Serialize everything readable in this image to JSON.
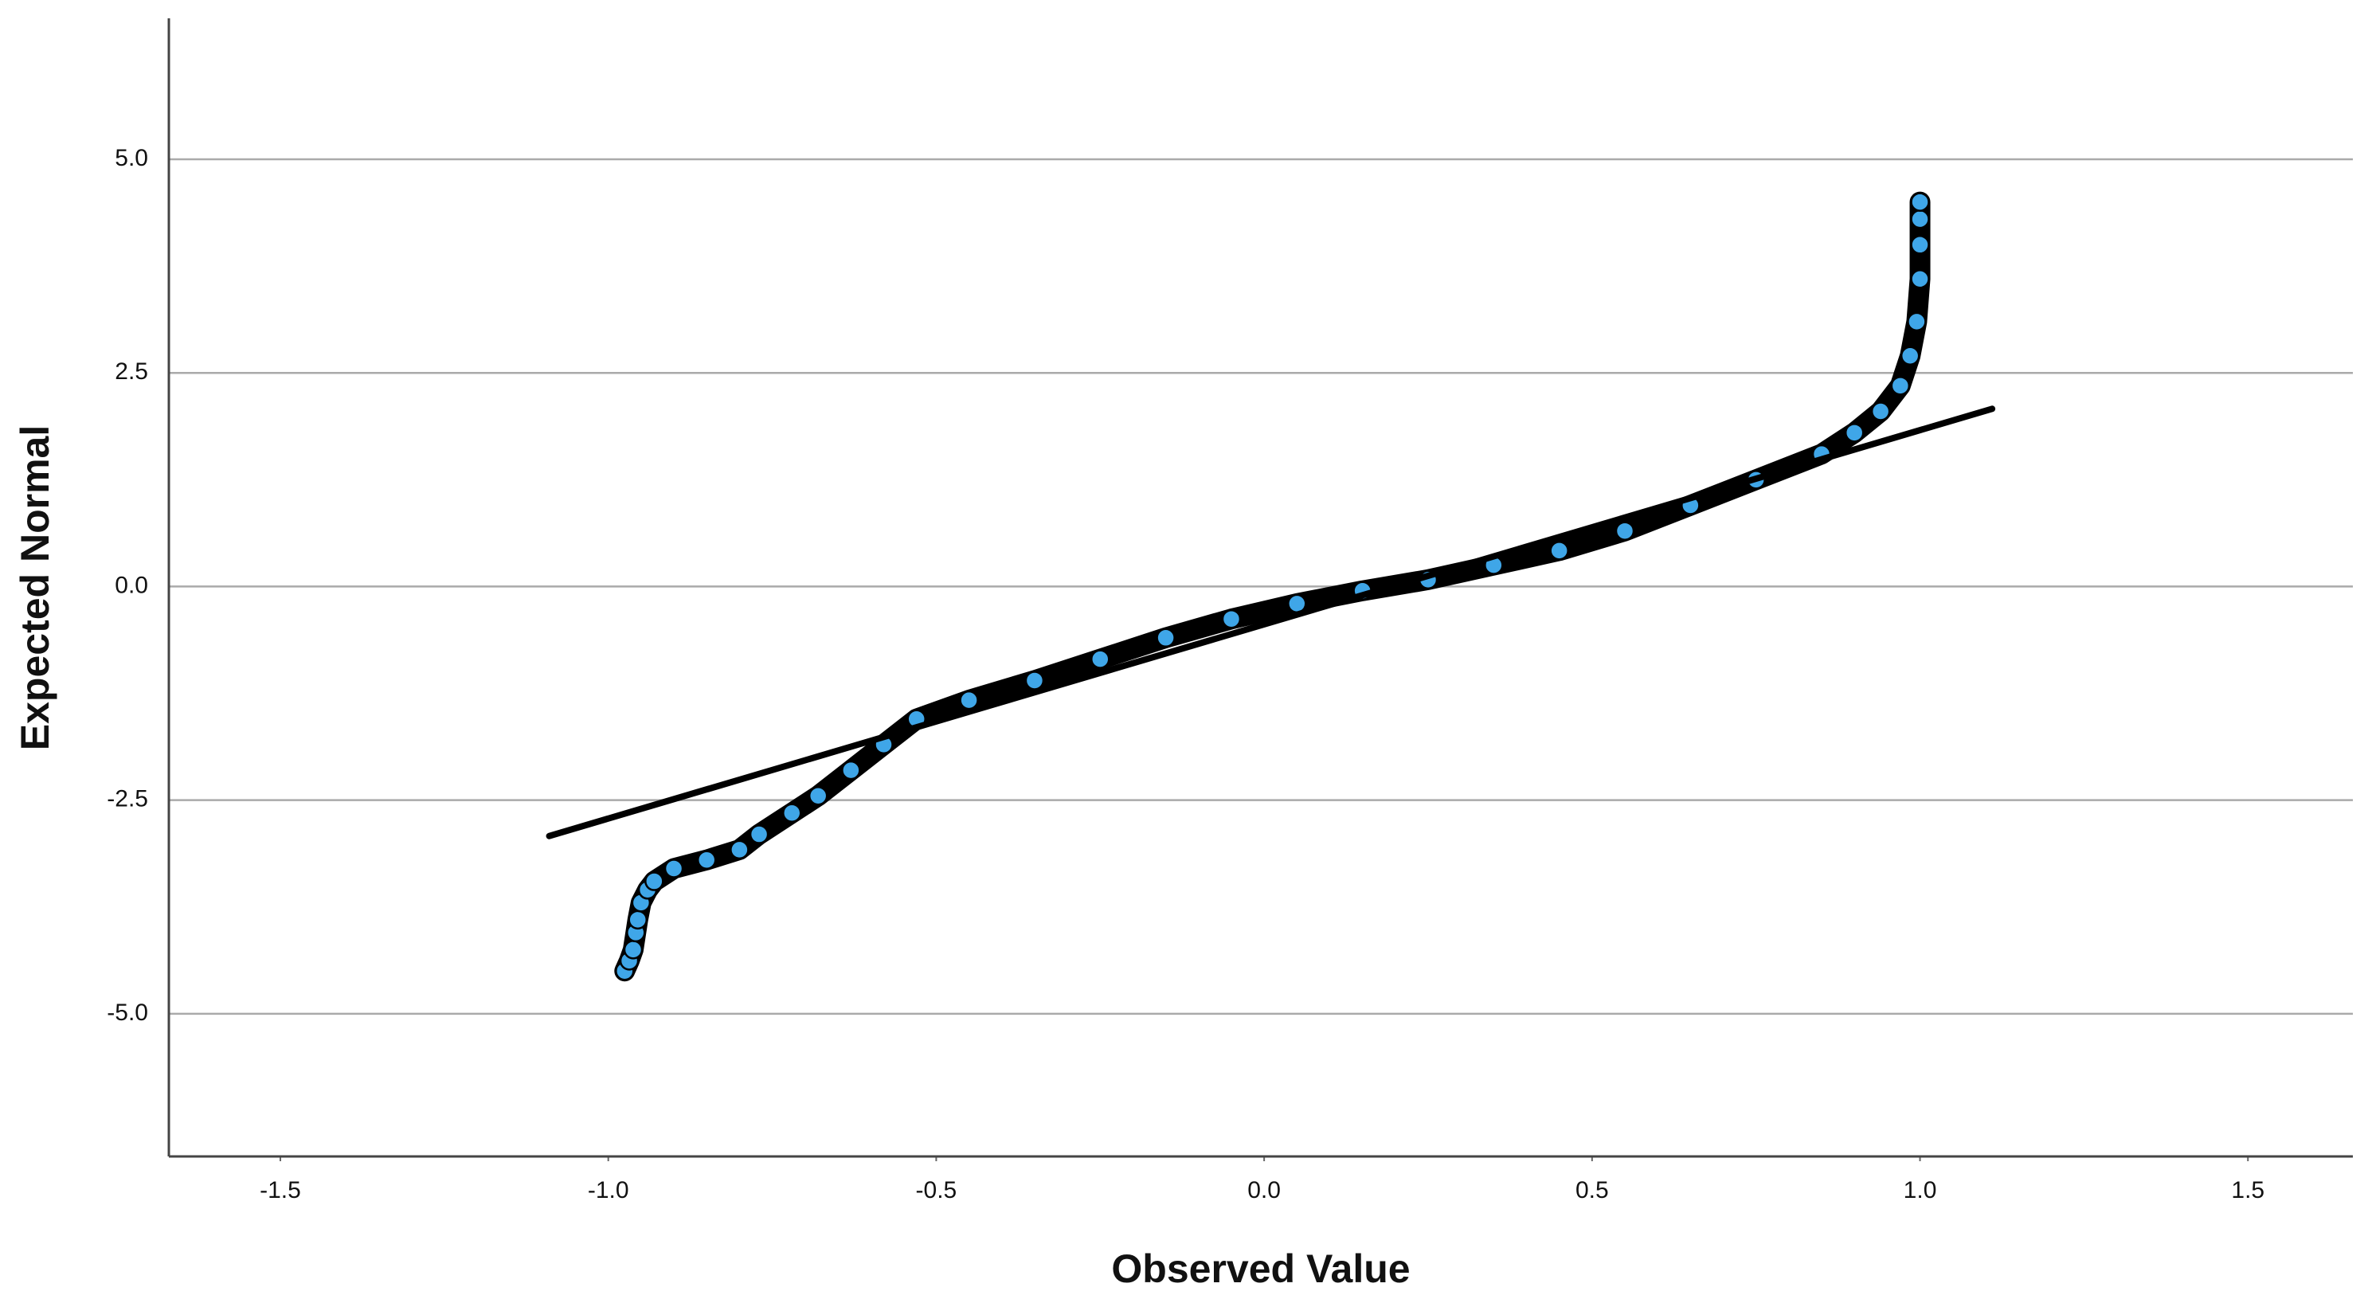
{
  "chart_data": {
    "type": "scatter",
    "x_label": "Observed Value",
    "y_label": "Expected Normal",
    "xlim": [
      -1.67,
      1.66
    ],
    "ylim": [
      -6.67,
      6.65
    ],
    "xticks": [
      {
        "value": -1.5,
        "label": "-1.5"
      },
      {
        "value": -1.0,
        "label": "-1.0"
      },
      {
        "value": -0.5,
        "label": "-0.5"
      },
      {
        "value": 0,
        "label": "0.0"
      },
      {
        "value": 0.5,
        "label": "0.5"
      },
      {
        "value": 1.0,
        "label": "1.0"
      },
      {
        "value": 1.5,
        "label": "1.5"
      }
    ],
    "yticks": [
      {
        "value": -5,
        "label": "-5.0"
      },
      {
        "value": -2.5,
        "label": "-2.5"
      },
      {
        "value": 0,
        "label": "0.0"
      },
      {
        "value": 2.5,
        "label": "2.5"
      },
      {
        "value": 5,
        "label": "5.0"
      }
    ],
    "grid": "y",
    "series": [
      {
        "type": "scatter",
        "color": "#3fa6e8",
        "edge_color": "#000000",
        "x": [
          -0.975,
          -0.968,
          -0.962,
          -0.958,
          -0.955,
          -0.95,
          -0.94,
          -0.93,
          -0.9,
          -0.85,
          -0.8,
          -0.77,
          -0.72,
          -0.68,
          -0.63,
          -0.58,
          -0.53,
          -0.45,
          -0.35,
          -0.25,
          -0.15,
          -0.05,
          0.05,
          0.15,
          0.25,
          0.35,
          0.45,
          0.55,
          0.65,
          0.75,
          0.85,
          0.9,
          0.94,
          0.97,
          0.985,
          0.995,
          1.0,
          1.0,
          1.0,
          1.0
        ],
        "values": [
          -4.5,
          -4.38,
          -4.25,
          -4.05,
          -3.9,
          -3.7,
          -3.55,
          -3.45,
          -3.3,
          -3.2,
          -3.08,
          -2.9,
          -2.65,
          -2.45,
          -2.15,
          -1.85,
          -1.55,
          -1.33,
          -1.1,
          -0.85,
          -0.6,
          -0.38,
          -0.2,
          -0.05,
          0.08,
          0.25,
          0.42,
          0.65,
          0.95,
          1.25,
          1.55,
          1.8,
          2.05,
          2.35,
          2.7,
          3.1,
          3.6,
          4.0,
          4.3,
          4.5
        ]
      },
      {
        "type": "line",
        "color": "#000000",
        "x": [
          -1.09,
          1.11
        ],
        "values": [
          -2.92,
          2.08
        ]
      }
    ]
  }
}
